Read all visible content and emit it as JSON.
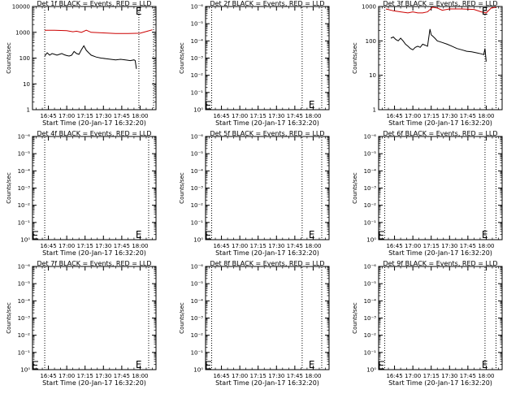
{
  "chart_data": [
    {
      "type": "line",
      "title": "Det 1f BLACK = Events, RED = LLD",
      "xlabel": "Start Time (20-Jan-17 16:32:20)",
      "ylabel": "Counts/sec",
      "x_ticks": [
        "16:45",
        "17:00",
        "17:15",
        "17:30",
        "17:45",
        "18:00"
      ],
      "y_scale": "log",
      "y_ticks": [
        "1",
        "10",
        "100",
        "1000",
        "10000"
      ],
      "ylim": [
        1,
        10000
      ],
      "flag_label": "E",
      "flag_time": "17:59",
      "vlines": [
        "16:42",
        "17:59",
        "18:11"
      ],
      "series": [
        {
          "color": "#000000",
          "x": [
            "16:42",
            "16:44",
            "16:46",
            "16:48",
            "16:50",
            "16:52",
            "16:54",
            "16:56",
            "16:58",
            "17:00",
            "17:02",
            "17:04",
            "17:06",
            "17:08",
            "17:10",
            "17:12",
            "17:14",
            "17:16",
            "17:18",
            "17:20",
            "17:24",
            "17:28",
            "17:32",
            "17:36",
            "17:40",
            "17:44",
            "17:48",
            "17:52",
            "17:55",
            "17:56",
            "17:57"
          ],
          "values": [
            120,
            160,
            130,
            150,
            140,
            130,
            140,
            150,
            135,
            125,
            120,
            130,
            180,
            150,
            140,
            210,
            300,
            200,
            160,
            130,
            110,
            100,
            95,
            90,
            85,
            90,
            85,
            80,
            85,
            80,
            38
          ]
        },
        {
          "color": "#cc0000",
          "x": [
            "16:42",
            "16:50",
            "17:00",
            "17:05",
            "17:08",
            "17:12",
            "17:16",
            "17:20",
            "17:30",
            "17:40",
            "17:50",
            "18:00",
            "18:06",
            "18:10"
          ],
          "values": [
            1200,
            1200,
            1150,
            1050,
            1100,
            1000,
            1200,
            1000,
            950,
            900,
            900,
            920,
            1100,
            1250
          ]
        }
      ]
    },
    {
      "type": "line",
      "title": "Det 2f BLACK = Events, RED = LLD",
      "xlabel": "Start Time (20-Jan-17 16:32:20)",
      "ylabel": "Counts/sec",
      "x_ticks": [
        "16:45",
        "17:00",
        "17:15",
        "17:30",
        "17:45",
        "18:00"
      ],
      "y_scale": "log",
      "y_ticks": [
        "10⁰",
        "10⁻¹",
        "10⁻²",
        "10⁻³",
        "10⁻⁴",
        "10⁻⁵",
        "10⁻⁶"
      ],
      "flag_label": "E",
      "flag_time": "17:59",
      "vlines": [
        "16:37",
        "17:51",
        "18:07"
      ],
      "series": []
    },
    {
      "type": "line",
      "title": "Det 3f BLACK = Events, RED = LLD",
      "xlabel": "Start Time (20-Jan-17 16:32:20)",
      "ylabel": "Counts/sec",
      "x_ticks": [
        "16:45",
        "17:00",
        "17:15",
        "17:30",
        "17:45",
        "18:00"
      ],
      "y_scale": "log",
      "y_ticks": [
        "1",
        "10",
        "100",
        "1000"
      ],
      "ylim": [
        1,
        1000
      ],
      "flag_label": "E",
      "flag_time": "17:59",
      "vlines": [
        "16:37",
        "17:59",
        "18:08"
      ],
      "series": [
        {
          "color": "#000000",
          "x": [
            "16:42",
            "16:44",
            "16:46",
            "16:48",
            "16:50",
            "16:52",
            "16:54",
            "16:56",
            "16:58",
            "17:00",
            "17:02",
            "17:04",
            "17:06",
            "17:08",
            "17:10",
            "17:12",
            "17:14",
            "17:15",
            "17:16",
            "17:18",
            "17:20",
            "17:24",
            "17:28",
            "17:32",
            "17:36",
            "17:40",
            "17:44",
            "17:48",
            "17:52",
            "17:56",
            "17:58",
            "17:59",
            "18:00"
          ],
          "values": [
            120,
            130,
            110,
            100,
            120,
            100,
            80,
            70,
            60,
            55,
            65,
            70,
            65,
            80,
            75,
            70,
            220,
            150,
            140,
            120,
            100,
            90,
            80,
            70,
            60,
            55,
            50,
            48,
            45,
            42,
            40,
            60,
            25
          ]
        },
        {
          "color": "#cc0000",
          "x": [
            "16:38",
            "16:44",
            "16:50",
            "16:56",
            "17:00",
            "17:04",
            "17:08",
            "17:12",
            "17:16",
            "17:20",
            "17:24",
            "17:30",
            "17:40",
            "17:50",
            "17:56",
            "18:00",
            "18:04",
            "18:08"
          ],
          "values": [
            850,
            750,
            700,
            650,
            700,
            650,
            650,
            700,
            950,
            900,
            780,
            850,
            850,
            820,
            700,
            650,
            900,
            950
          ]
        }
      ]
    },
    {
      "type": "line",
      "title": "Det 4f BLACK = Events, RED = LLD",
      "xlabel": "Start Time (20-Jan-17 16:32:20)",
      "ylabel": "Counts/sec",
      "x_ticks": [
        "16:45",
        "17:00",
        "17:15",
        "17:30",
        "17:45",
        "18:00"
      ],
      "y_scale": "log",
      "y_ticks": [
        "10⁰",
        "10⁻¹",
        "10⁻²",
        "10⁻³",
        "10⁻⁴",
        "10⁻⁵",
        "10⁻⁶"
      ],
      "flag_label": "E",
      "flag_time": "17:59",
      "vlines": [
        "16:42",
        "18:07"
      ],
      "series": []
    },
    {
      "type": "line",
      "title": "Det 5f BLACK = Events, RED = LLD",
      "xlabel": "Start Time (20-Jan-17 16:32:20)",
      "ylabel": "Counts/sec",
      "x_ticks": [
        "16:45",
        "17:00",
        "17:15",
        "17:30",
        "17:45",
        "18:00"
      ],
      "y_scale": "log",
      "y_ticks": [
        "10⁰",
        "10⁻¹",
        "10⁻²",
        "10⁻³",
        "10⁻⁴",
        "10⁻⁵",
        "10⁻⁶"
      ],
      "flag_label": "E",
      "flag_time": "17:59",
      "vlines": [
        "16:37",
        "17:51",
        "18:07"
      ],
      "series": []
    },
    {
      "type": "line",
      "title": "Det 6f BLACK = Events, RED = LLD",
      "xlabel": "Start Time (20-Jan-17 16:32:20)",
      "ylabel": "Counts/sec",
      "x_ticks": [
        "16:45",
        "17:00",
        "17:15",
        "17:30",
        "17:45",
        "18:00"
      ],
      "y_scale": "log",
      "y_ticks": [
        "10⁰",
        "10⁻¹",
        "10⁻²",
        "10⁻³",
        "10⁻⁴",
        "10⁻⁵",
        "10⁻⁶"
      ],
      "flag_label": "E",
      "flag_time": "17:59",
      "vlines": [
        "16:37",
        "17:59",
        "18:08"
      ],
      "series": []
    },
    {
      "type": "line",
      "title": "Det 7f BLACK = Events, RED = LLD",
      "xlabel": "Start Time (20-Jan-17 16:32:20)",
      "ylabel": "Counts/sec",
      "x_ticks": [
        "16:45",
        "17:00",
        "17:15",
        "17:30",
        "17:45",
        "18:00"
      ],
      "y_scale": "log",
      "y_ticks": [
        "10⁰",
        "10⁻¹",
        "10⁻²",
        "10⁻³",
        "10⁻⁴",
        "10⁻⁵",
        "10⁻⁶"
      ],
      "flag_label": "E",
      "flag_time": "17:59",
      "vlines": [
        "16:42",
        "18:07"
      ],
      "series": []
    },
    {
      "type": "line",
      "title": "Det 8f BLACK = Events, RED = LLD",
      "xlabel": "Start Time (20-Jan-17 16:32:20)",
      "ylabel": "Counts/sec",
      "x_ticks": [
        "16:45",
        "17:00",
        "17:15",
        "17:30",
        "17:45",
        "18:00"
      ],
      "y_scale": "log",
      "y_ticks": [
        "10⁰",
        "10⁻¹",
        "10⁻²",
        "10⁻³",
        "10⁻⁴",
        "10⁻⁵",
        "10⁻⁶"
      ],
      "flag_label": "E",
      "flag_time": "17:59",
      "vlines": [
        "16:37",
        "17:51",
        "18:07"
      ],
      "series": []
    },
    {
      "type": "line",
      "title": "Det 9f BLACK = Events, RED = LLD",
      "xlabel": "Start Time (20-Jan-17 16:32:20)",
      "ylabel": "Counts/sec",
      "x_ticks": [
        "16:45",
        "17:00",
        "17:15",
        "17:30",
        "17:45",
        "18:00"
      ],
      "y_scale": "log",
      "y_ticks": [
        "10⁰",
        "10⁻¹",
        "10⁻²",
        "10⁻³",
        "10⁻⁴",
        "10⁻⁵",
        "10⁻⁶"
      ],
      "flag_label": "E",
      "flag_time": "17:59",
      "vlines": [
        "16:37",
        "17:59",
        "18:08"
      ],
      "series": []
    }
  ]
}
